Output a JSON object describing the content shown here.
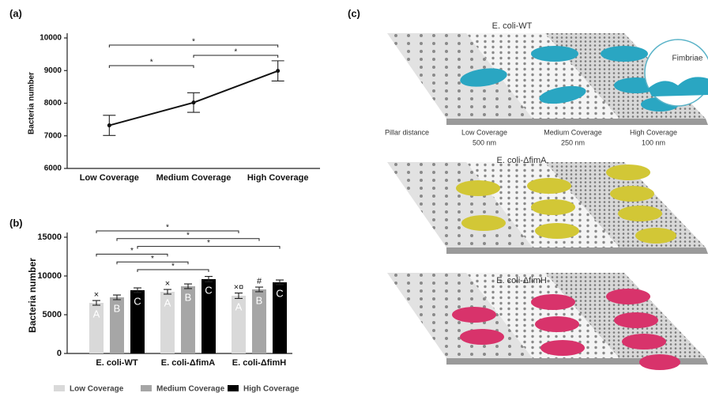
{
  "chart_data": [
    {
      "type": "line",
      "panel": "(a)",
      "y_label": "Bacteria number",
      "categories": [
        "Low Coverage",
        "Medium Coverage",
        "High Coverage"
      ],
      "values": [
        7320,
        8020,
        8990
      ],
      "errors": [
        310,
        300,
        310
      ],
      "color": "#111111",
      "ylim": [
        6000,
        10000
      ],
      "yticks": [
        6000,
        7000,
        8000,
        9000,
        10000
      ],
      "annotations": [
        {
          "label": "*",
          "between": [
            "Low Coverage",
            "High Coverage"
          ]
        },
        {
          "label": "*",
          "between": [
            "Medium Coverage",
            "High Coverage"
          ]
        },
        {
          "label": "*",
          "between": [
            "Low Coverage",
            "Medium Coverage"
          ]
        }
      ]
    },
    {
      "type": "bar",
      "panel": "(b)",
      "y_label": "Bacteria number",
      "categories": [
        "E. coli-WT",
        "E. coli-ΔfimA",
        "E. coli-ΔfimH"
      ],
      "series": [
        {
          "name": "Low Coverage",
          "color": "#d9d9d9",
          "letter": "A",
          "markers": [
            "×",
            "×",
            "×¤"
          ],
          "values": [
            6530,
            7960,
            7450
          ],
          "errors": [
            300,
            300,
            350
          ]
        },
        {
          "name": "Medium Coverage",
          "color": "#a6a6a6",
          "letter": "B",
          "markers": [
            null,
            null,
            "#"
          ],
          "values": [
            7240,
            8670,
            8270
          ],
          "errors": [
            300,
            300,
            300
          ]
        },
        {
          "name": "High Coverage",
          "color": "#000000",
          "letter": "C",
          "markers": [
            null,
            null,
            null
          ],
          "values": [
            8160,
            9590,
            9180
          ],
          "errors": [
            300,
            350,
            300
          ]
        }
      ],
      "ylim": [
        0,
        15000
      ],
      "yticks": [
        0,
        5000,
        10000,
        15000
      ],
      "legend": "bottom",
      "annotations": [
        {
          "label": "*",
          "between": [
            [
              "E. coli-WT",
              "Low Coverage"
            ],
            [
              "E. coli-ΔfimH",
              "Low Coverage"
            ]
          ]
        },
        {
          "label": "*",
          "between": [
            [
              "E. coli-WT",
              "Medium Coverage"
            ],
            [
              "E. coli-ΔfimH",
              "Medium Coverage"
            ]
          ]
        },
        {
          "label": "*",
          "between": [
            [
              "E. coli-WT",
              "High Coverage"
            ],
            [
              "E. coli-ΔfimH",
              "High Coverage"
            ]
          ]
        },
        {
          "label": "*",
          "between": [
            [
              "E. coli-WT",
              "Low Coverage"
            ],
            [
              "E. coli-ΔfimA",
              "Low Coverage"
            ]
          ]
        },
        {
          "label": "*",
          "between": [
            [
              "E. coli-WT",
              "Medium Coverage"
            ],
            [
              "E. coli-ΔfimA",
              "Medium Coverage"
            ]
          ]
        },
        {
          "label": "*",
          "between": [
            [
              "E. coli-WT",
              "High Coverage"
            ],
            [
              "E. coli-ΔfimA",
              "High Coverage"
            ]
          ]
        }
      ]
    }
  ],
  "illustration": {
    "panel": "(c)",
    "strains": [
      "E. coli-WT",
      "E. coli-ΔfimA",
      "E. coli-ΔfimH"
    ],
    "callout": "Fimbriae",
    "scale_title": "Pillar distance",
    "scale": [
      {
        "coverage": "Low Coverage",
        "distance": "500 nm"
      },
      {
        "coverage": "Medium Coverage",
        "distance": "250 nm"
      },
      {
        "coverage": "High Coverage",
        "distance": "100 nm"
      }
    ]
  }
}
